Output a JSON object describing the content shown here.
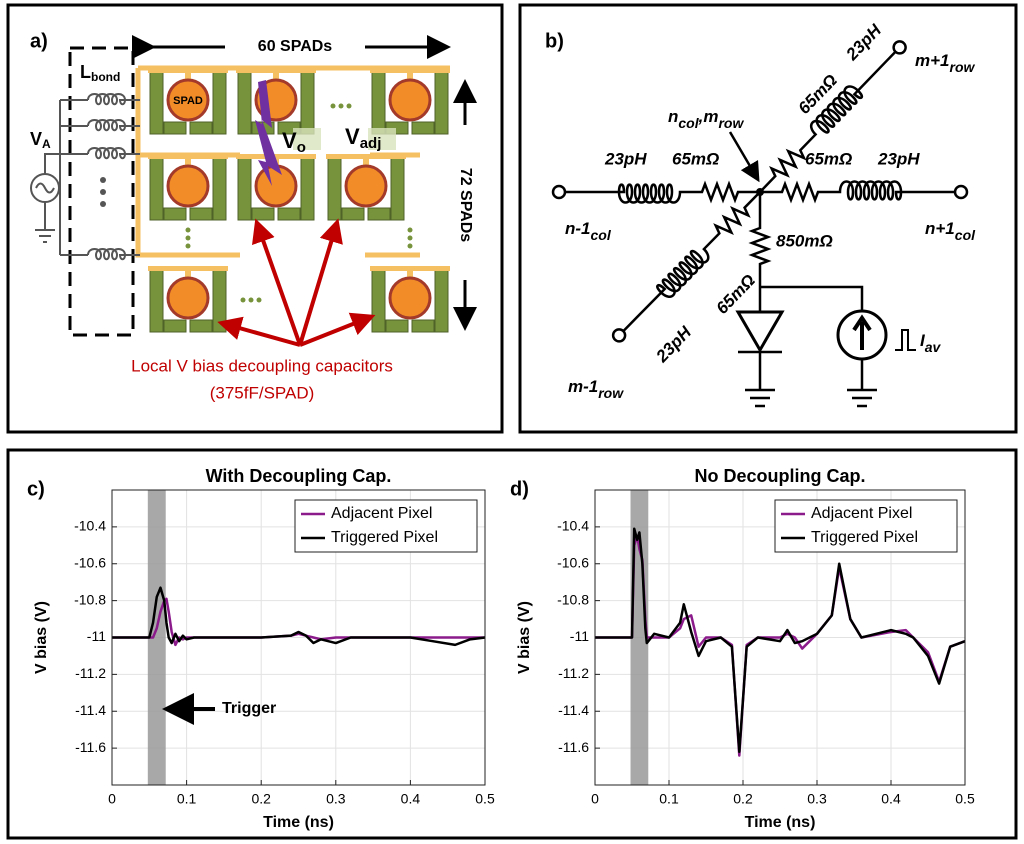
{
  "panel_a": {
    "panel_label": "a)",
    "width_label": "60 SPADs",
    "height_label": "72 SPADs",
    "bond_label": {
      "main": "L",
      "sub": "bond"
    },
    "source_label": {
      "main": "V",
      "sub": "A"
    },
    "spad_label": "SPAD",
    "vo_label": {
      "main": "V",
      "sub": "o"
    },
    "vadj_label": {
      "main": "V",
      "sub": "adj"
    },
    "caption": [
      "Local V bias decoupling capacitors",
      "(375fF/SPAD)"
    ]
  },
  "panel_b": {
    "panel_label": "b)",
    "node_label": [
      "n",
      "col",
      ",m",
      "row"
    ],
    "inductance": "23pH",
    "resistance": "65mΩ",
    "vertical_resistance": "850mΩ",
    "current_label": {
      "main": "I",
      "sub": "av"
    },
    "left_terminal": {
      "main": "n-1",
      "sub": "col"
    },
    "right_terminal": {
      "main": "n+1",
      "sub": "col"
    },
    "top_terminal": {
      "main": "m+1",
      "sub": "row"
    },
    "bottom_terminal": {
      "main": "m-1",
      "sub": "row"
    }
  },
  "chart_data": [
    {
      "type": "line",
      "panel_label": "c)",
      "title": "With Decoupling Cap.",
      "x_label": "Time (ns)",
      "y_label": "V bias (V)",
      "annotation": "Trigger",
      "shaded_region": [
        0.048,
        0.072
      ],
      "xlim": [
        0,
        0.5
      ],
      "xticks": [
        0,
        0.1,
        0.2,
        0.3,
        0.4,
        0.5
      ],
      "ylim": [
        -11.8,
        -10.2
      ],
      "yticks": [
        -10.4,
        -10.6,
        -10.8,
        -11,
        -11.2,
        -11.4,
        -11.6
      ],
      "grid": true,
      "legend": "upper-right",
      "x": [
        0,
        0.05,
        0.055,
        0.06,
        0.065,
        0.07,
        0.073,
        0.076,
        0.08,
        0.085,
        0.09,
        0.095,
        0.1,
        0.11,
        0.12,
        0.15,
        0.2,
        0.24,
        0.25,
        0.26,
        0.27,
        0.28,
        0.3,
        0.32,
        0.35,
        0.4,
        0.43,
        0.46,
        0.48,
        0.5
      ],
      "series": [
        {
          "name": "Adjacent Pixel",
          "color": "#8b1a8b",
          "values": [
            -11,
            -11,
            -11,
            -10.95,
            -10.86,
            -10.8,
            -10.79,
            -10.86,
            -10.97,
            -11.04,
            -11.0,
            -11.01,
            -11.0,
            -11,
            -11,
            -11,
            -11,
            -10.99,
            -10.98,
            -10.99,
            -11.0,
            -11.01,
            -11.0,
            -11,
            -11,
            -11,
            -11.0,
            -11.0,
            -11,
            -11
          ]
        },
        {
          "name": "Triggered Pixel",
          "color": "#000000",
          "values": [
            -11,
            -11,
            -10.92,
            -10.78,
            -10.73,
            -10.8,
            -10.92,
            -11.0,
            -11.03,
            -10.98,
            -11.02,
            -10.99,
            -11.01,
            -11.0,
            -11,
            -11,
            -11,
            -10.99,
            -10.97,
            -10.99,
            -11.03,
            -11.01,
            -11.03,
            -11,
            -11,
            -11,
            -11.02,
            -11.04,
            -11.01,
            -11
          ]
        }
      ]
    },
    {
      "type": "line",
      "panel_label": "d)",
      "title": "No Decoupling Cap.",
      "x_label": "Time (ns)",
      "y_label": "V bias (V)",
      "shaded_region": [
        0.048,
        0.072
      ],
      "xlim": [
        0,
        0.5
      ],
      "xticks": [
        0,
        0.1,
        0.2,
        0.3,
        0.4,
        0.5
      ],
      "ylim": [
        -11.8,
        -10.2
      ],
      "yticks": [
        -10.4,
        -10.6,
        -10.8,
        -11,
        -11.2,
        -11.4,
        -11.6
      ],
      "grid": true,
      "legend": "upper-right",
      "x": [
        0,
        0.05,
        0.053,
        0.057,
        0.06,
        0.064,
        0.068,
        0.07,
        0.08,
        0.1,
        0.115,
        0.12,
        0.13,
        0.14,
        0.15,
        0.17,
        0.185,
        0.195,
        0.205,
        0.22,
        0.25,
        0.26,
        0.27,
        0.28,
        0.3,
        0.32,
        0.33,
        0.345,
        0.36,
        0.4,
        0.42,
        0.43,
        0.45,
        0.465,
        0.48,
        0.5
      ],
      "series": [
        {
          "name": "Adjacent Pixel",
          "color": "#8b1a8b",
          "values": [
            -11,
            -11,
            -10.5,
            -10.45,
            -10.52,
            -10.58,
            -10.9,
            -11.0,
            -11.0,
            -11.0,
            -10.95,
            -10.9,
            -10.88,
            -11.05,
            -11.0,
            -11.0,
            -11.04,
            -11.64,
            -11.04,
            -11.0,
            -11.0,
            -10.98,
            -11.0,
            -11.06,
            -10.98,
            -10.88,
            -10.62,
            -10.9,
            -11.0,
            -10.97,
            -10.96,
            -11.0,
            -11.08,
            -11.24,
            -11.05,
            -11.02
          ]
        },
        {
          "name": "Triggered Pixel",
          "color": "#000000",
          "values": [
            -11,
            -11,
            -10.41,
            -10.47,
            -10.43,
            -10.6,
            -10.95,
            -11.03,
            -10.98,
            -11.0,
            -10.92,
            -10.82,
            -10.97,
            -11.1,
            -11.02,
            -11.0,
            -11.05,
            -11.62,
            -11.05,
            -11.0,
            -11.02,
            -10.96,
            -11.03,
            -11.02,
            -10.98,
            -10.88,
            -10.6,
            -10.9,
            -11.0,
            -10.96,
            -10.98,
            -11.0,
            -11.1,
            -11.25,
            -11.05,
            -11.02
          ]
        }
      ]
    }
  ]
}
